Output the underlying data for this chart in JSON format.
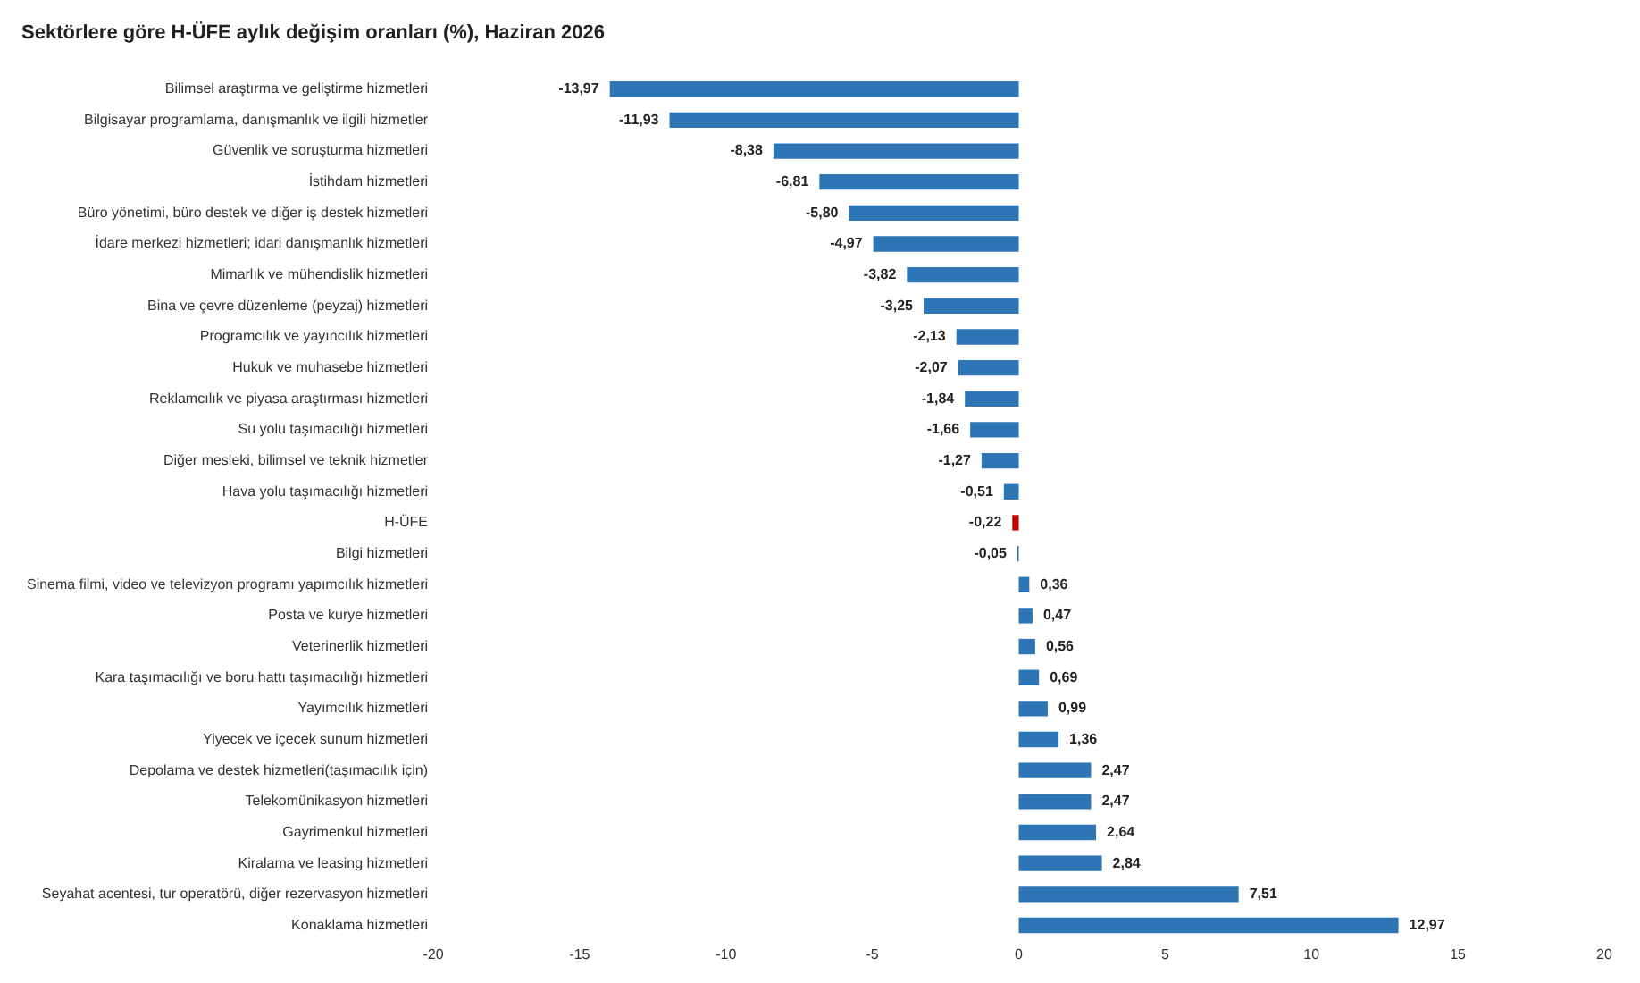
{
  "chart_data": {
    "type": "bar",
    "orientation": "horizontal",
    "title": "Sektörlere göre H-ÜFE aylık değişim oranları (%), Haziran 2026",
    "categories": [
      "Bilimsel araştırma ve geliştirme hizmetleri",
      "Bilgisayar programlama, danışmanlık ve ilgili hizmetler",
      "Güvenlik ve soruşturma hizmetleri",
      "İstihdam hizmetleri",
      "Büro yönetimi, büro destek ve diğer iş destek hizmetleri",
      "İdare merkezi hizmetleri; idari danışmanlık hizmetleri",
      "Mimarlık ve mühendislik hizmetleri",
      "Bina ve çevre düzenleme (peyzaj) hizmetleri",
      "Programcılık ve yayıncılık hizmetleri",
      "Hukuk ve muhasebe hizmetleri",
      "Reklamcılık ve piyasa araştırması hizmetleri",
      "Su yolu taşımacılığı hizmetleri",
      "Diğer mesleki, bilimsel ve teknik hizmetler",
      "Hava yolu taşımacılığı hizmetleri",
      "H-ÜFE",
      "Bilgi hizmetleri",
      "Sinema filmi, video ve televizyon programı yapımcılık hizmetleri",
      "Posta ve kurye hizmetleri",
      "Veterinerlik hizmetleri",
      "Kara taşımacılığı ve boru hattı taşımacılığı hizmetleri",
      "Yayımcılık hizmetleri",
      "Yiyecek ve içecek sunum hizmetleri",
      "Depolama ve destek hizmetleri(taşımacılık için)",
      "Telekomünikasyon hizmetleri",
      "Gayrimenkul hizmetleri",
      "Kiralama ve leasing hizmetleri",
      "Seyahat acentesi, tur operatörü, diğer rezervasyon hizmetleri",
      "Konaklama hizmetleri"
    ],
    "values": [
      -13.97,
      -11.93,
      -8.38,
      -6.81,
      -5.8,
      -4.97,
      -3.82,
      -3.25,
      -2.13,
      -2.07,
      -1.84,
      -1.66,
      -1.27,
      -0.51,
      -0.22,
      -0.05,
      0.36,
      0.47,
      0.56,
      0.69,
      0.99,
      1.36,
      2.47,
      2.47,
      2.64,
      2.84,
      7.51,
      12.97
    ],
    "value_labels": [
      "-13,97",
      "-11,93",
      "-8,38",
      "-6,81",
      "-5,80",
      "-4,97",
      "-3,82",
      "-3,25",
      "-2,13",
      "-2,07",
      "-1,84",
      "-1,66",
      "-1,27",
      "-0,51",
      "-0,22",
      "-0,05",
      "0,36",
      "0,47",
      "0,56",
      "0,69",
      "0,99",
      "1,36",
      "2,47",
      "2,47",
      "2,64",
      "2,84",
      "7,51",
      "12,97"
    ],
    "colors": [
      "#2e75b6",
      "#2e75b6",
      "#2e75b6",
      "#2e75b6",
      "#2e75b6",
      "#2e75b6",
      "#2e75b6",
      "#2e75b6",
      "#2e75b6",
      "#2e75b6",
      "#2e75b6",
      "#2e75b6",
      "#2e75b6",
      "#2e75b6",
      "#c00000",
      "#2e75b6",
      "#2e75b6",
      "#2e75b6",
      "#2e75b6",
      "#2e75b6",
      "#2e75b6",
      "#2e75b6",
      "#2e75b6",
      "#2e75b6",
      "#2e75b6",
      "#2e75b6",
      "#2e75b6",
      "#2e75b6"
    ],
    "xlim": [
      -20,
      20
    ],
    "xticks": [
      -20,
      -15,
      -10,
      -5,
      0,
      5,
      10,
      15,
      20
    ],
    "grid": false,
    "legend": false
  }
}
